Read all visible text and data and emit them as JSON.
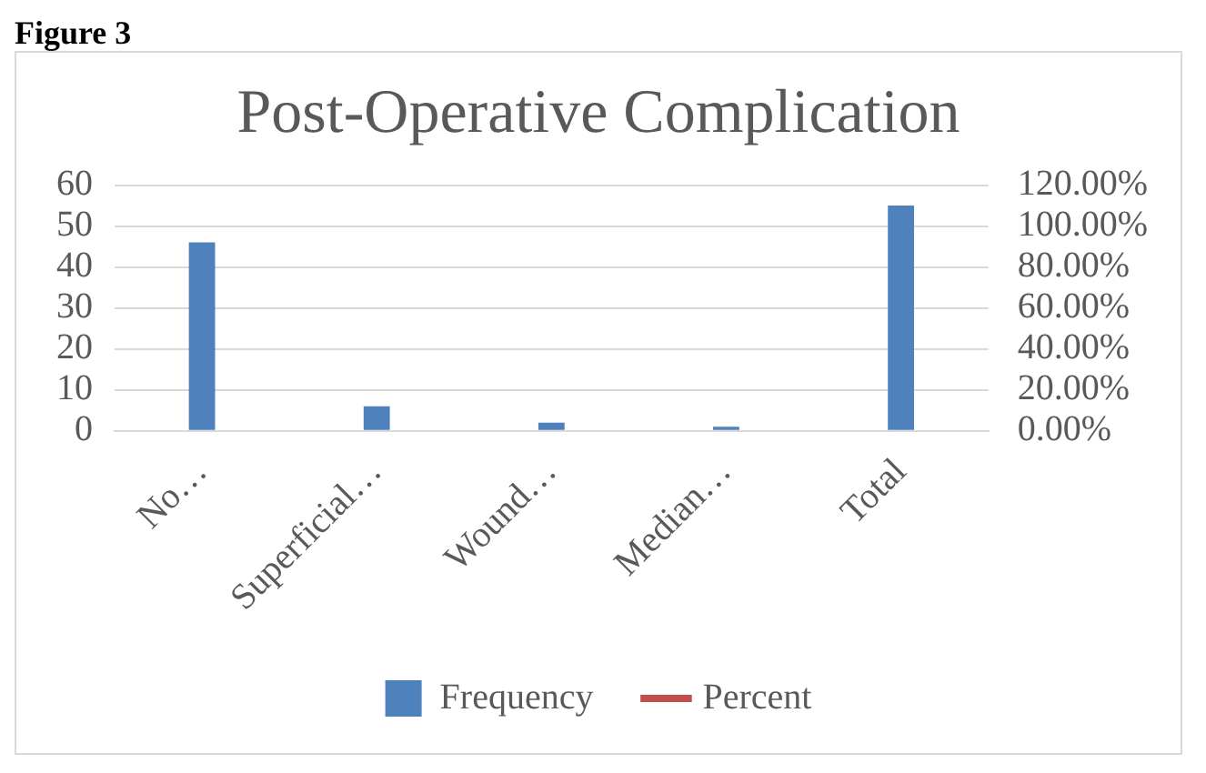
{
  "chart_data": {
    "type": "bar",
    "title": "Post-Operative Complication",
    "annotations": [
      "Figure 3"
    ],
    "categories": [
      "No…",
      "Superficial…",
      "Wound…",
      "Median…",
      "Total"
    ],
    "series": [
      {
        "name": "Frequency",
        "color": "#4f81bd",
        "values": [
          46,
          6,
          2,
          1,
          55
        ]
      },
      {
        "name": "Percent",
        "type": "line",
        "axis": "y2",
        "color": "#c0504d",
        "values": [
          null,
          null,
          null,
          null,
          null
        ]
      }
    ],
    "ylim": [
      0,
      60
    ],
    "yticks": [
      0,
      10,
      20,
      30,
      40,
      50,
      60
    ],
    "y2lim": [
      0,
      120
    ],
    "y2ticks": [
      {
        "value": 0,
        "label": "0.00%"
      },
      {
        "value": 20,
        "label": "20.00%"
      },
      {
        "value": 40,
        "label": "40.00%"
      },
      {
        "value": 60,
        "label": "60.00%"
      },
      {
        "value": 80,
        "label": "80.00%"
      },
      {
        "value": 100,
        "label": "100.00%"
      },
      {
        "value": 120,
        "label": "120.00%"
      }
    ],
    "grid": "y",
    "legend": "bottom"
  }
}
